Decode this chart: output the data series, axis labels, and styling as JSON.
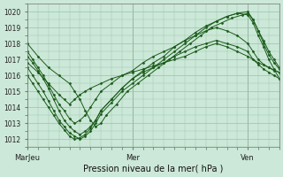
{
  "xlabel": "Pression niveau de la mer( hPa )",
  "xlim": [
    0,
    96
  ],
  "ylim": [
    1011.5,
    1020.5
  ],
  "yticks": [
    1012,
    1013,
    1014,
    1015,
    1016,
    1017,
    1018,
    1019,
    1020
  ],
  "xtick_positions": [
    0,
    40,
    84
  ],
  "xtick_labels": [
    "MarJeu",
    "Mer",
    "Ven"
  ],
  "bg_color": "#cce8d8",
  "line_color": "#1a5c1a",
  "grid_color": "#99c4aa",
  "series": [
    [
      [
        0,
        1018.0
      ],
      [
        4,
        1017.2
      ],
      [
        8,
        1016.5
      ],
      [
        12,
        1016.0
      ],
      [
        16,
        1015.5
      ],
      [
        18,
        1015.0
      ],
      [
        20,
        1014.5
      ],
      [
        22,
        1013.8
      ],
      [
        24,
        1013.2
      ],
      [
        26,
        1012.8
      ],
      [
        28,
        1013.0
      ],
      [
        30,
        1013.5
      ],
      [
        34,
        1014.2
      ],
      [
        38,
        1015.0
      ],
      [
        42,
        1015.5
      ],
      [
        46,
        1016.0
      ],
      [
        50,
        1016.5
      ],
      [
        54,
        1017.0
      ],
      [
        58,
        1017.5
      ],
      [
        62,
        1018.0
      ],
      [
        66,
        1018.5
      ],
      [
        70,
        1019.0
      ],
      [
        74,
        1019.3
      ],
      [
        78,
        1019.6
      ],
      [
        82,
        1019.8
      ],
      [
        84,
        1019.9
      ],
      [
        86,
        1019.5
      ],
      [
        88,
        1018.8
      ],
      [
        90,
        1018.2
      ],
      [
        92,
        1017.5
      ],
      [
        94,
        1017.0
      ],
      [
        96,
        1016.5
      ]
    ],
    [
      [
        0,
        1017.2
      ],
      [
        2,
        1016.8
      ],
      [
        4,
        1016.3
      ],
      [
        6,
        1015.8
      ],
      [
        8,
        1015.2
      ],
      [
        10,
        1014.5
      ],
      [
        12,
        1013.8
      ],
      [
        14,
        1013.2
      ],
      [
        16,
        1012.8
      ],
      [
        18,
        1012.5
      ],
      [
        20,
        1012.3
      ],
      [
        22,
        1012.5
      ],
      [
        24,
        1012.8
      ],
      [
        26,
        1013.2
      ],
      [
        28,
        1013.8
      ],
      [
        32,
        1014.5
      ],
      [
        36,
        1015.2
      ],
      [
        40,
        1015.8
      ],
      [
        44,
        1016.3
      ],
      [
        48,
        1016.8
      ],
      [
        52,
        1017.2
      ],
      [
        56,
        1017.8
      ],
      [
        60,
        1018.2
      ],
      [
        64,
        1018.7
      ],
      [
        68,
        1019.1
      ],
      [
        72,
        1019.4
      ],
      [
        76,
        1019.7
      ],
      [
        80,
        1019.9
      ],
      [
        84,
        1020.0
      ],
      [
        86,
        1019.5
      ],
      [
        88,
        1018.8
      ],
      [
        90,
        1018.0
      ],
      [
        92,
        1017.3
      ],
      [
        94,
        1016.8
      ],
      [
        96,
        1016.4
      ]
    ],
    [
      [
        0,
        1016.5
      ],
      [
        2,
        1016.0
      ],
      [
        4,
        1015.5
      ],
      [
        6,
        1015.0
      ],
      [
        8,
        1014.4
      ],
      [
        10,
        1013.8
      ],
      [
        12,
        1013.2
      ],
      [
        14,
        1012.8
      ],
      [
        16,
        1012.4
      ],
      [
        18,
        1012.2
      ],
      [
        20,
        1012.0
      ],
      [
        22,
        1012.2
      ],
      [
        24,
        1012.5
      ],
      [
        26,
        1013.0
      ],
      [
        28,
        1013.6
      ],
      [
        32,
        1014.3
      ],
      [
        36,
        1015.0
      ],
      [
        40,
        1015.5
      ],
      [
        44,
        1016.0
      ],
      [
        48,
        1016.5
      ],
      [
        52,
        1017.0
      ],
      [
        56,
        1017.5
      ],
      [
        60,
        1018.0
      ],
      [
        64,
        1018.5
      ],
      [
        68,
        1019.0
      ],
      [
        72,
        1019.4
      ],
      [
        76,
        1019.7
      ],
      [
        80,
        1019.9
      ],
      [
        84,
        1019.8
      ],
      [
        86,
        1019.3
      ],
      [
        88,
        1018.5
      ],
      [
        90,
        1017.8
      ],
      [
        92,
        1017.0
      ],
      [
        94,
        1016.4
      ],
      [
        96,
        1015.8
      ]
    ],
    [
      [
        0,
        1016.0
      ],
      [
        2,
        1015.5
      ],
      [
        4,
        1015.0
      ],
      [
        6,
        1014.5
      ],
      [
        8,
        1014.0
      ],
      [
        10,
        1013.5
      ],
      [
        12,
        1013.0
      ],
      [
        14,
        1012.6
      ],
      [
        16,
        1012.2
      ],
      [
        18,
        1012.0
      ],
      [
        20,
        1012.1
      ],
      [
        22,
        1012.3
      ],
      [
        24,
        1012.7
      ],
      [
        26,
        1013.2
      ],
      [
        28,
        1013.8
      ],
      [
        32,
        1014.5
      ],
      [
        36,
        1015.2
      ],
      [
        40,
        1015.8
      ],
      [
        44,
        1016.2
      ],
      [
        48,
        1016.5
      ],
      [
        52,
        1016.8
      ],
      [
        56,
        1017.2
      ],
      [
        60,
        1017.5
      ],
      [
        64,
        1017.8
      ],
      [
        68,
        1018.0
      ],
      [
        72,
        1018.2
      ],
      [
        76,
        1018.0
      ],
      [
        80,
        1017.8
      ],
      [
        84,
        1017.5
      ],
      [
        86,
        1017.0
      ],
      [
        88,
        1016.7
      ],
      [
        90,
        1016.4
      ],
      [
        92,
        1016.2
      ],
      [
        94,
        1016.0
      ],
      [
        96,
        1015.8
      ]
    ],
    [
      [
        0,
        1017.5
      ],
      [
        2,
        1017.0
      ],
      [
        4,
        1016.5
      ],
      [
        6,
        1016.0
      ],
      [
        8,
        1015.4
      ],
      [
        10,
        1014.8
      ],
      [
        12,
        1014.2
      ],
      [
        14,
        1013.8
      ],
      [
        16,
        1013.3
      ],
      [
        18,
        1013.0
      ],
      [
        20,
        1013.2
      ],
      [
        22,
        1013.5
      ],
      [
        24,
        1014.0
      ],
      [
        26,
        1014.5
      ],
      [
        28,
        1015.0
      ],
      [
        32,
        1015.5
      ],
      [
        36,
        1016.0
      ],
      [
        40,
        1016.3
      ],
      [
        44,
        1016.8
      ],
      [
        48,
        1017.2
      ],
      [
        52,
        1017.5
      ],
      [
        56,
        1017.8
      ],
      [
        60,
        1018.2
      ],
      [
        64,
        1018.5
      ],
      [
        68,
        1018.8
      ],
      [
        72,
        1019.0
      ],
      [
        76,
        1018.8
      ],
      [
        80,
        1018.5
      ],
      [
        84,
        1018.0
      ],
      [
        86,
        1017.5
      ],
      [
        88,
        1017.0
      ],
      [
        90,
        1016.7
      ],
      [
        92,
        1016.5
      ],
      [
        94,
        1016.3
      ],
      [
        96,
        1016.2
      ]
    ],
    [
      [
        0,
        1016.8
      ],
      [
        4,
        1016.2
      ],
      [
        8,
        1015.5
      ],
      [
        12,
        1014.8
      ],
      [
        14,
        1014.5
      ],
      [
        16,
        1014.2
      ],
      [
        18,
        1014.5
      ],
      [
        20,
        1014.8
      ],
      [
        22,
        1015.0
      ],
      [
        24,
        1015.2
      ],
      [
        28,
        1015.5
      ],
      [
        32,
        1015.8
      ],
      [
        36,
        1016.0
      ],
      [
        40,
        1016.2
      ],
      [
        44,
        1016.4
      ],
      [
        48,
        1016.6
      ],
      [
        52,
        1016.8
      ],
      [
        56,
        1017.0
      ],
      [
        60,
        1017.2
      ],
      [
        64,
        1017.5
      ],
      [
        68,
        1017.8
      ],
      [
        72,
        1018.0
      ],
      [
        76,
        1017.8
      ],
      [
        80,
        1017.5
      ],
      [
        84,
        1017.2
      ],
      [
        88,
        1016.8
      ],
      [
        92,
        1016.5
      ],
      [
        96,
        1016.2
      ]
    ]
  ]
}
